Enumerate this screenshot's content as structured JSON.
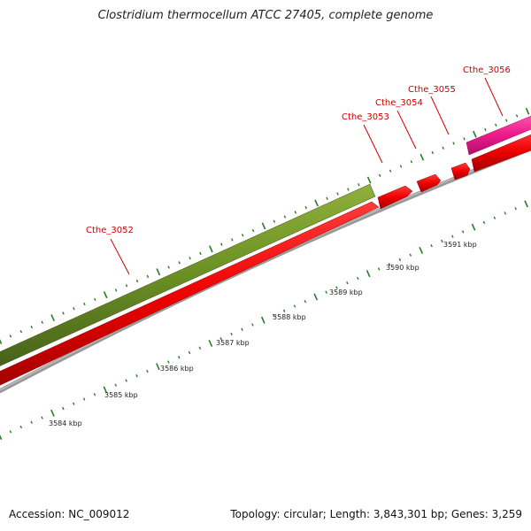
{
  "title": "Clostridium thermocellum ATCC 27405, complete genome",
  "footer": {
    "accession": "Accession: NC_009012",
    "summary": "Topology: circular; Length: 3,843,301 bp; Genes: 3,259"
  },
  "colors": {
    "label": "#cc0000",
    "gene_red": "#ee0000",
    "gene_olive": "#6b8e23",
    "gene_pink": "#ee1c8c",
    "backbone": "#888888",
    "ticks": "#2a7a2a"
  },
  "gene_labels": [
    {
      "id": "cthe-3052",
      "text": "Cthe_3052"
    },
    {
      "id": "cthe-3053",
      "text": "Cthe_3053"
    },
    {
      "id": "cthe-3054",
      "text": "Cthe_3054"
    },
    {
      "id": "cthe-3055",
      "text": "Cthe_3055"
    },
    {
      "id": "cthe-3056",
      "text": "Cthe_3056"
    }
  ],
  "scale_labels": [
    {
      "text": "3584 kbp"
    },
    {
      "text": "3585 kbp"
    },
    {
      "text": "3586 kbp"
    },
    {
      "text": "3587 kbp"
    },
    {
      "text": "3588 kbp"
    },
    {
      "text": "3589 kbp"
    },
    {
      "text": "3590 kbp"
    },
    {
      "text": "3591 kbp"
    }
  ]
}
